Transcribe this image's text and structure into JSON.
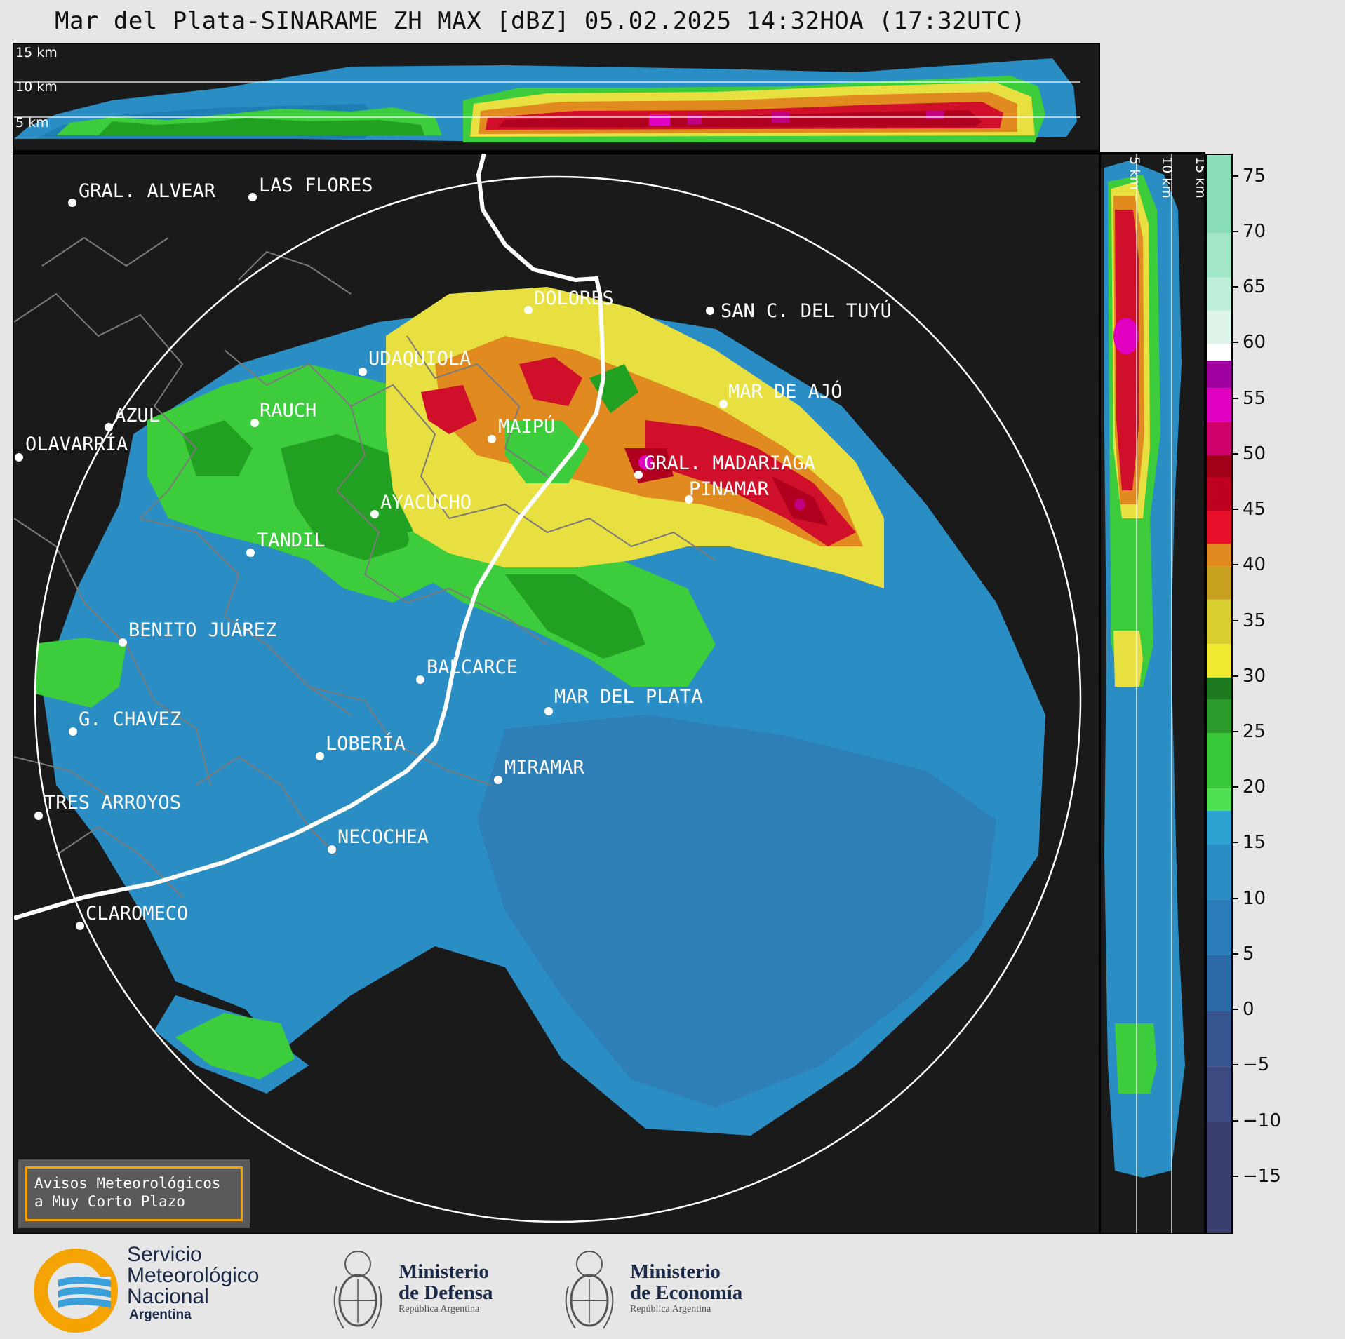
{
  "title": "Mar del Plata-SINARAME ZH MAX [dBZ] 05.02.2025 14:32HOA (17:32UTC)",
  "top_panel": {
    "height_labels": [
      "15 km",
      "10 km",
      "5 km"
    ]
  },
  "side_panel": {
    "height_labels": [
      "5 km",
      "10 km",
      "15 km"
    ]
  },
  "colorbar": {
    "ticks": [
      "75",
      "70",
      "65",
      "60",
      "55",
      "50",
      "45",
      "40",
      "35",
      "30",
      "25",
      "20",
      "15",
      "10",
      "5",
      "0",
      "−5",
      "−10",
      "−15"
    ],
    "tick_values": [
      75,
      70,
      65,
      60,
      55,
      50,
      45,
      40,
      35,
      30,
      25,
      20,
      15,
      10,
      5,
      0,
      -5,
      -10,
      -15
    ],
    "range": [
      -20,
      77
    ]
  },
  "cities": [
    {
      "name": "GRAL. ALVEAR"
    },
    {
      "name": "LAS FLORES"
    },
    {
      "name": "DOLORES"
    },
    {
      "name": "SAN C. DEL TUYÚ"
    },
    {
      "name": "UDAQUIOLA"
    },
    {
      "name": "MAR DE AJÓ"
    },
    {
      "name": "AZUL"
    },
    {
      "name": "RAUCH"
    },
    {
      "name": "MAIPÚ"
    },
    {
      "name": "OLAVARRÍA"
    },
    {
      "name": "GRAL. MADARIAGA"
    },
    {
      "name": "PINAMAR"
    },
    {
      "name": "AYACUCHO"
    },
    {
      "name": "TANDIL"
    },
    {
      "name": "BENITO JUÁREZ"
    },
    {
      "name": "BALCARCE"
    },
    {
      "name": "MAR DEL PLATA"
    },
    {
      "name": "G. CHAVEZ"
    },
    {
      "name": "LOBERÍA"
    },
    {
      "name": "MIRAMAR"
    },
    {
      "name": "TRES ARROYOS"
    },
    {
      "name": "NECOCHEA"
    },
    {
      "name": "CLAROMECO"
    }
  ],
  "alerts_box": {
    "line1": "Avisos Meteorológicos",
    "line2": "a Muy Corto Plazo"
  },
  "logos": {
    "smn": {
      "line1": "Servicio",
      "line2": "Meteorológico",
      "line3": "Nacional",
      "line4": "Argentina"
    },
    "defensa": {
      "line1": "Ministerio",
      "line2": "de Defensa",
      "line3": "República Argentina"
    },
    "economia": {
      "line1": "Ministerio",
      "line2": "de Economía",
      "line3": "República Argentina"
    }
  },
  "colors": {
    "background": "#1a1a1a",
    "range_ring": "#ffffff",
    "coastline": "#ffffff",
    "borders": "#7a7a7a",
    "alert_border": "#f5a300",
    "smn_orange": "#f5a300",
    "smn_blue": "#3aa0dc"
  }
}
